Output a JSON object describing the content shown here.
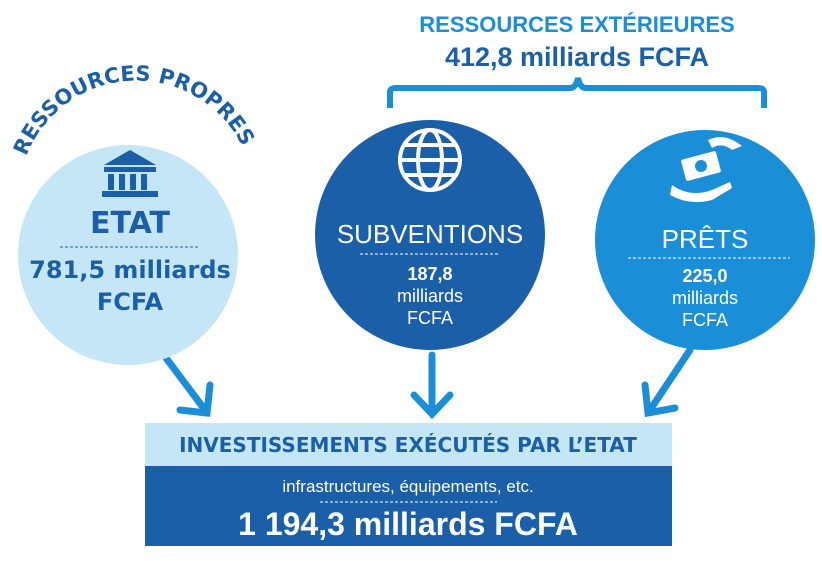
{
  "external": {
    "title": "RESSOURCES EXTÉRIEURES",
    "amount": "412,8 milliards FCFA"
  },
  "own": {
    "title": "RESSOURCES PROPRES"
  },
  "nodes": [
    {
      "label": "ETAT",
      "lines": [
        "781,5 milliards",
        "FCFA"
      ]
    },
    {
      "label": "SUBVENTIONS",
      "lines": [
        "187,8",
        "milliards",
        "FCFA"
      ]
    },
    {
      "label": "PRÊTS",
      "lines": [
        "225,0",
        "milliards",
        "FCFA"
      ]
    }
  ],
  "result": {
    "title": "INVESTISSEMENTS EXÉCUTÉS PAR L’ETAT",
    "subtitle": "infrastructures, équipements, etc.",
    "total": "1 194,3 milliards FCFA"
  }
}
